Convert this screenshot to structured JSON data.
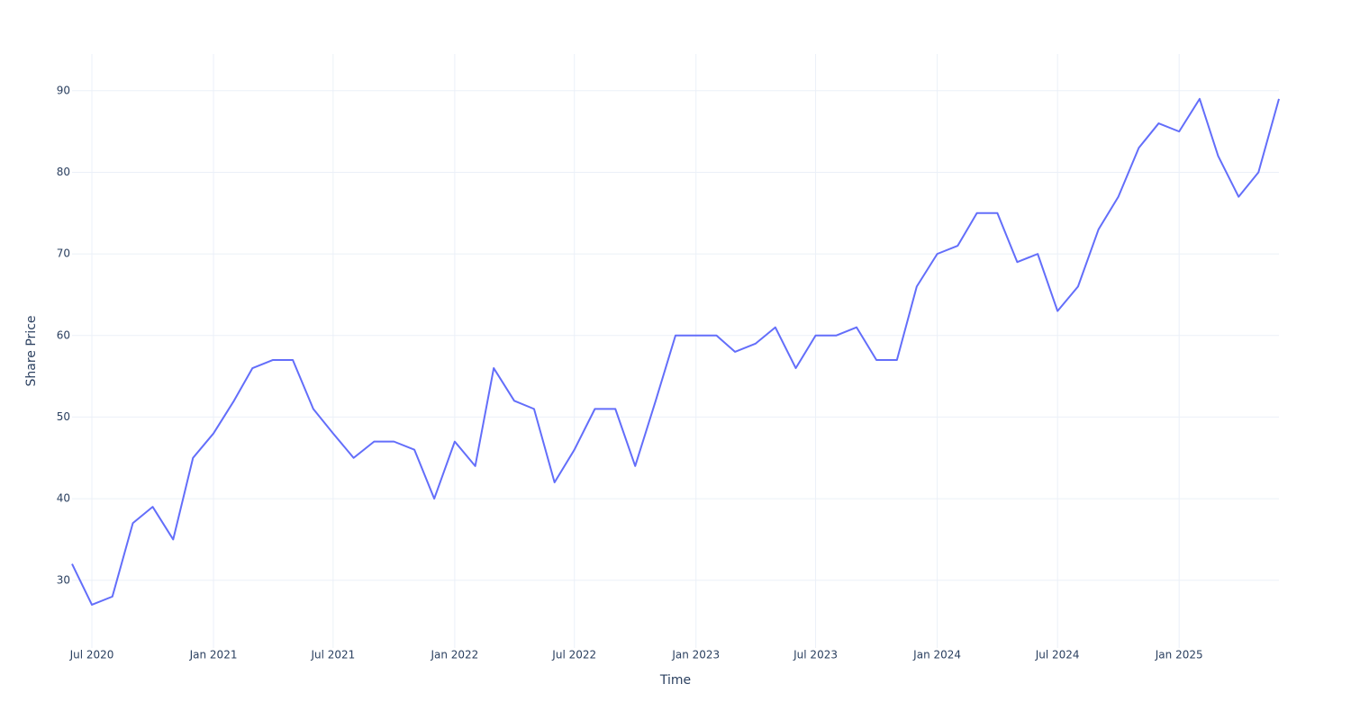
{
  "chart_data": {
    "type": "line",
    "x_label": "Time",
    "y_label": "Share Price",
    "x": [
      "2020-06",
      "2020-07",
      "2020-08",
      "2020-09",
      "2020-10",
      "2020-11",
      "2020-12",
      "2021-01",
      "2021-02",
      "2021-03",
      "2021-04",
      "2021-05",
      "2021-06",
      "2021-07",
      "2021-08",
      "2021-09",
      "2021-10",
      "2021-11",
      "2021-12",
      "2022-01",
      "2022-02",
      "2022-03",
      "2022-04",
      "2022-05",
      "2022-06",
      "2022-07",
      "2022-08",
      "2022-09",
      "2022-10",
      "2022-11",
      "2022-12",
      "2023-01",
      "2023-02",
      "2023-03",
      "2023-04",
      "2023-05",
      "2023-06",
      "2023-07",
      "2023-08",
      "2023-09",
      "2023-10",
      "2023-11",
      "2023-12",
      "2024-01",
      "2024-02",
      "2024-03",
      "2024-04",
      "2024-05",
      "2024-06",
      "2024-07",
      "2024-08",
      "2024-09",
      "2024-10",
      "2024-11",
      "2024-12",
      "2025-01",
      "2025-02",
      "2025-03",
      "2025-04",
      "2025-05",
      "2025-06"
    ],
    "series": [
      {
        "name": "Share Price",
        "color": "#636efa",
        "values": [
          32,
          27,
          28,
          37,
          39,
          35,
          45,
          48,
          52,
          56,
          57,
          57,
          51,
          48,
          45,
          47,
          47,
          46,
          40,
          47,
          44,
          56,
          52,
          51,
          42,
          46,
          51,
          51,
          44,
          52,
          60,
          60,
          60,
          58,
          59,
          61,
          56,
          60,
          60,
          61,
          57,
          57,
          66,
          70,
          71,
          75,
          75,
          69,
          70,
          63,
          66,
          73,
          77,
          83,
          86,
          85,
          89,
          82,
          77,
          80,
          89
        ]
      }
    ],
    "xlim": [
      "2020-06",
      "2025-06"
    ],
    "xticks": [
      {
        "value": "2020-07",
        "label": "Jul 2020"
      },
      {
        "value": "2021-01",
        "label": "Jan 2021"
      },
      {
        "value": "2021-07",
        "label": "Jul 2021"
      },
      {
        "value": "2022-01",
        "label": "Jan 2022"
      },
      {
        "value": "2022-07",
        "label": "Jul 2022"
      },
      {
        "value": "2023-01",
        "label": "Jan 2023"
      },
      {
        "value": "2023-07",
        "label": "Jul 2023"
      },
      {
        "value": "2024-01",
        "label": "Jan 2024"
      },
      {
        "value": "2024-07",
        "label": "Jul 2024"
      },
      {
        "value": "2025-01",
        "label": "Jan 2025"
      }
    ],
    "ylim": [
      21.7,
      94.5
    ],
    "yticks": [
      30,
      40,
      50,
      60,
      70,
      80,
      90
    ],
    "grid": true
  }
}
